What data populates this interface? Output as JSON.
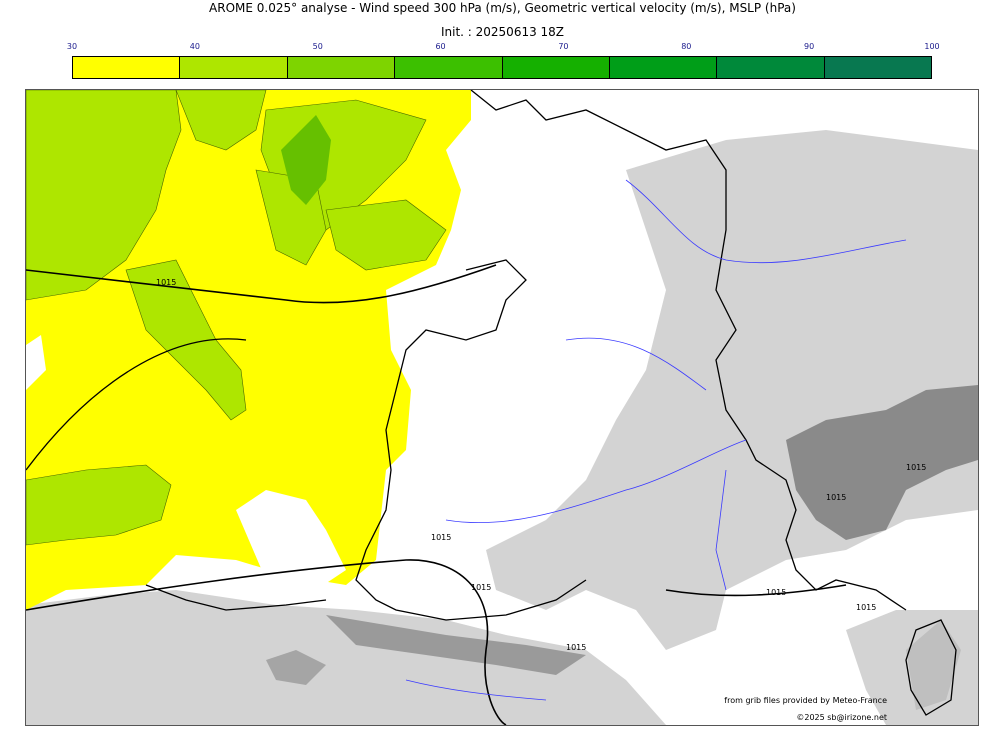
{
  "header": {
    "title": "AROME 0.025° analyse - Wind speed 300 hPa (m/s), Geometric vertical velocity (m/s), MSLP (hPa)",
    "init": "Init. : 20250613 18Z"
  },
  "colorbar": {
    "ticks": [
      "30",
      "40",
      "50",
      "60",
      "70",
      "80",
      "90",
      "100"
    ],
    "colors": [
      "#ffff00",
      "#aee600",
      "#7ed400",
      "#3cc000",
      "#15b000",
      "#009e18",
      "#00893a",
      "#087850"
    ]
  },
  "map": {
    "isobar_labels": [
      "1015",
      "1015",
      "1015",
      "1015",
      "1015",
      "1015",
      "1015",
      "1015"
    ],
    "colors": {
      "land_outline": "#000000",
      "rivers": "#3a3aff",
      "terrain_gray": "#d0d0d0",
      "wind_yellow": "#ffff00",
      "wind_green": "#aee600"
    }
  },
  "credits": {
    "source": "from grib files provided by Meteo-France",
    "copyright": "©2025 sb@irizone.net"
  }
}
